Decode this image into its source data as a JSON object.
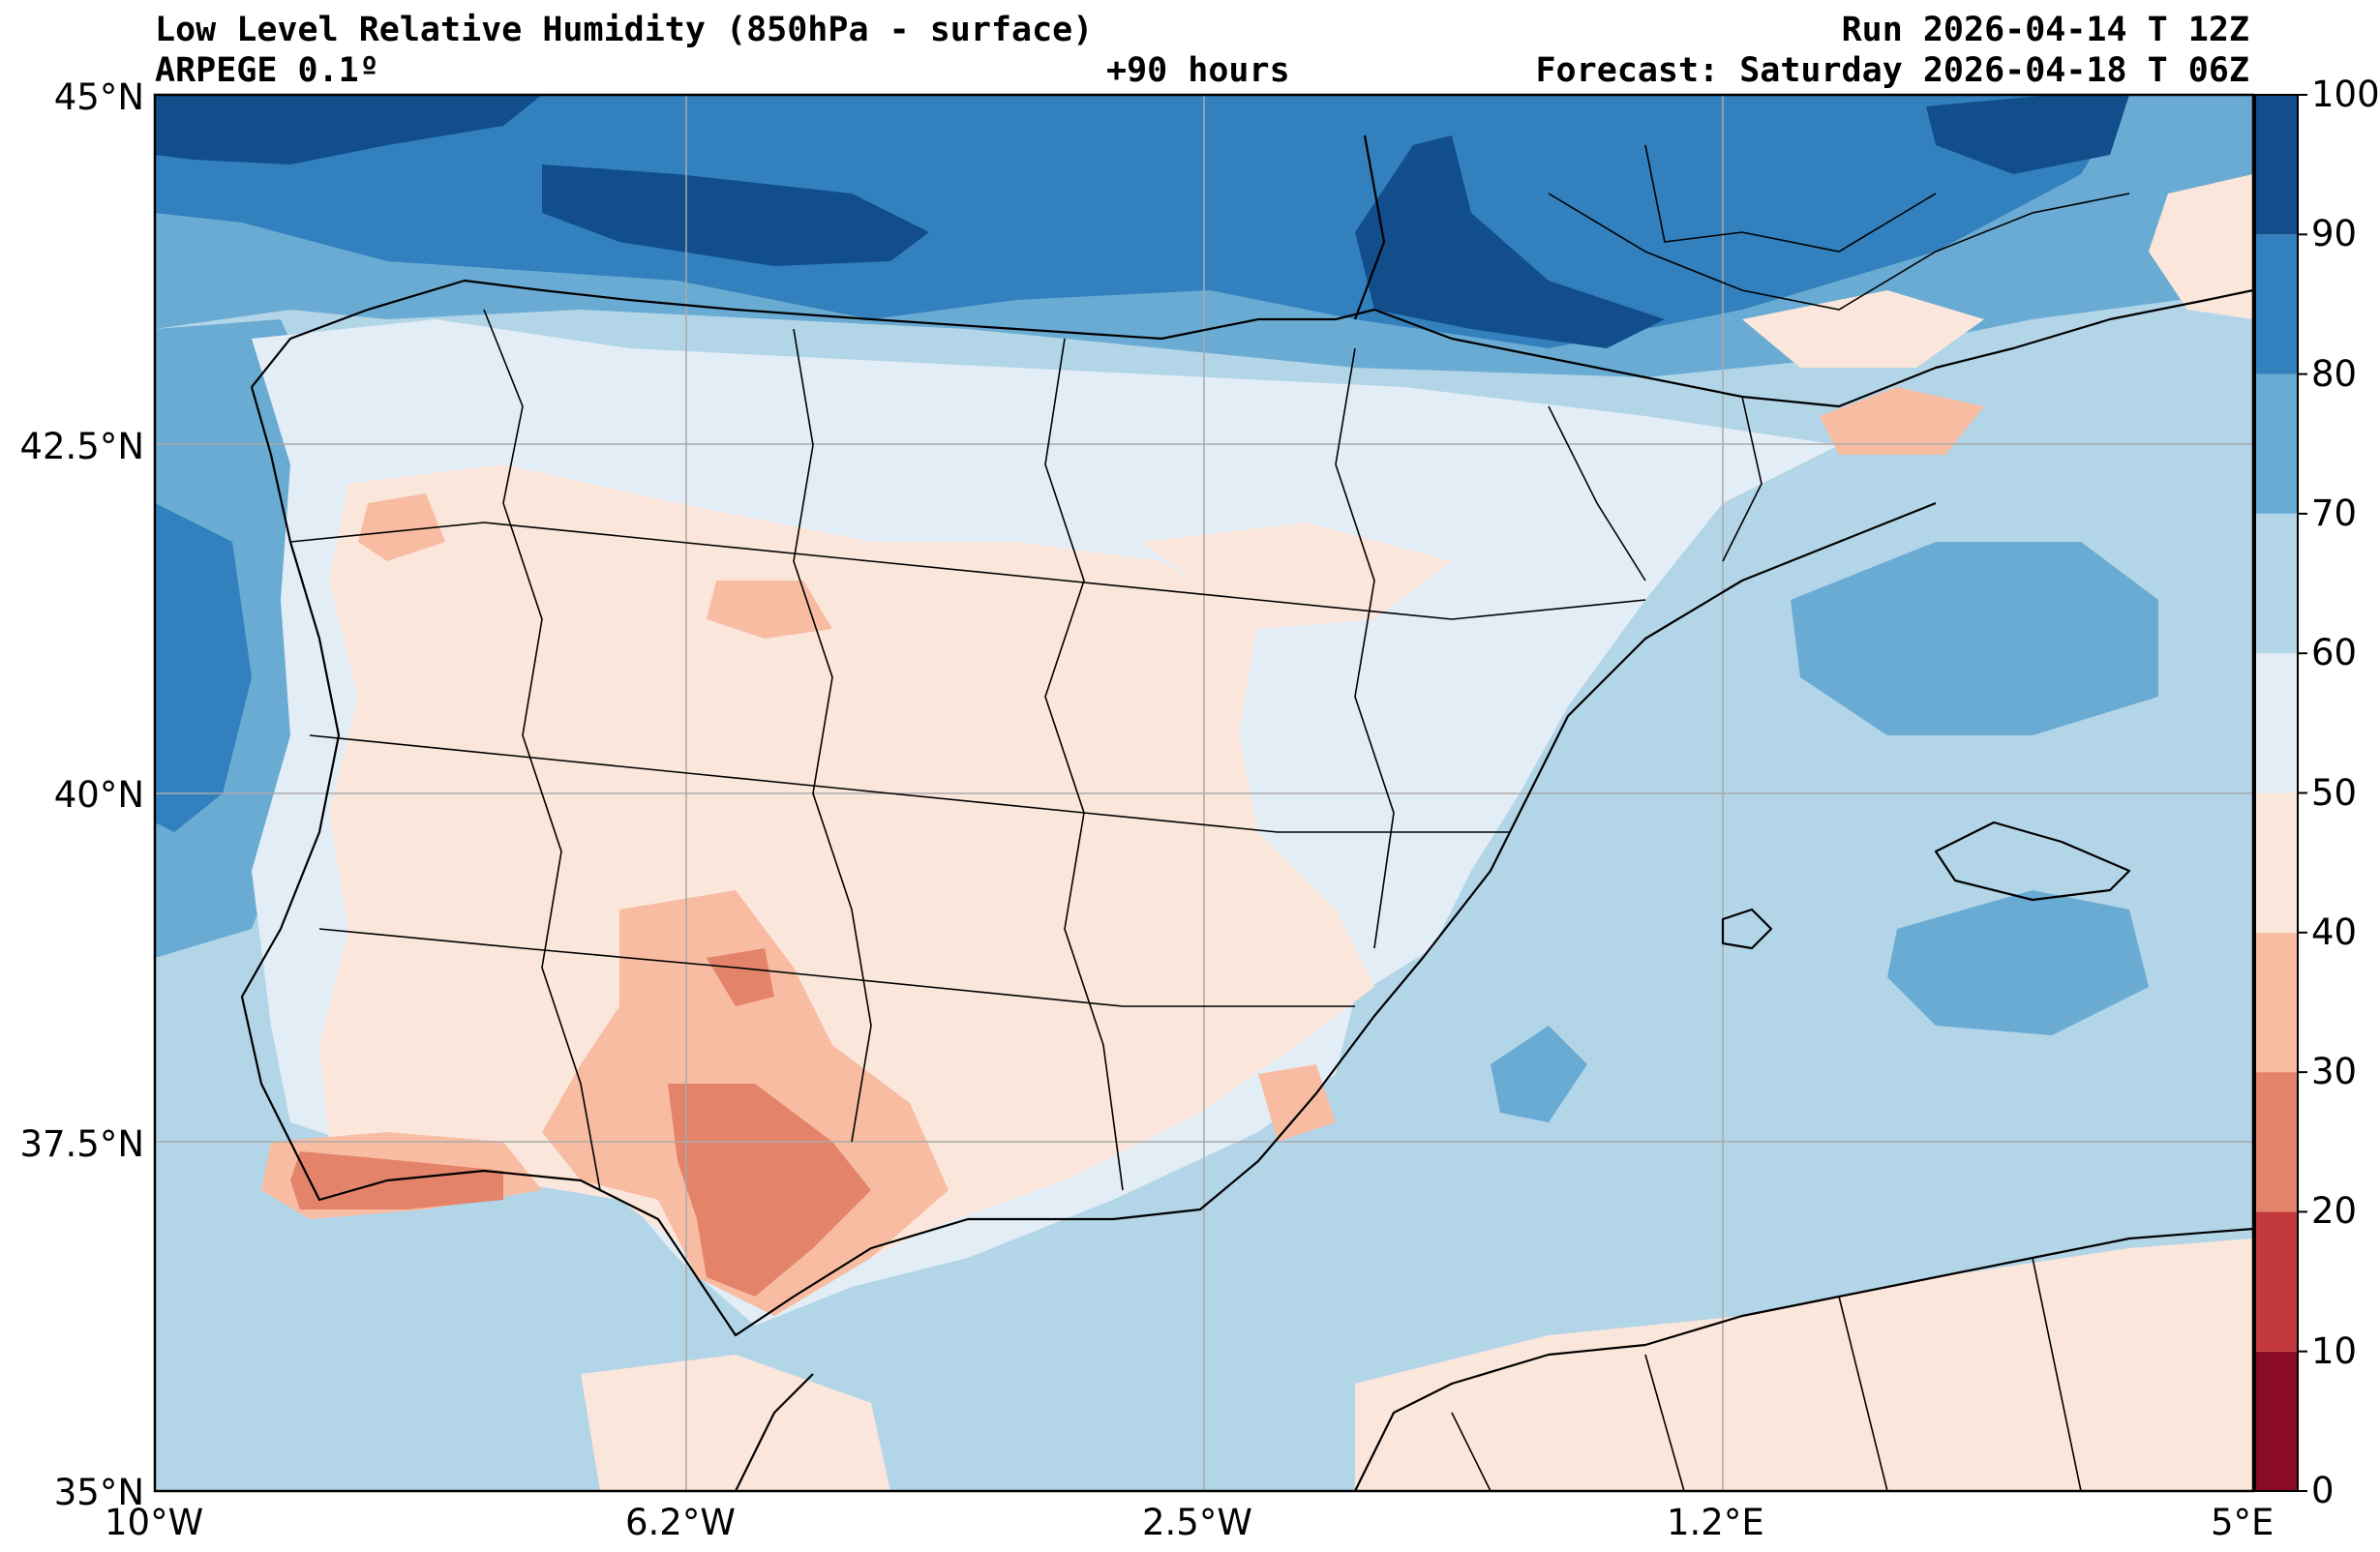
{
  "header": {
    "title": "Low Level Relative Humidity (850hPa - surface)",
    "model": "ARPEGE 0.1º",
    "lead_time": "+90 hours",
    "run": "Run 2026-04-14 T 12Z",
    "forecast": "Forecast: Saturday 2026-04-18 T 06Z"
  },
  "map": {
    "projection": "plate-carree",
    "lon_range": [
      -10,
      5
    ],
    "lat_range": [
      35,
      45
    ],
    "gridlines": true,
    "lon_ticks": [
      {
        "value": -10,
        "label": "10°W"
      },
      {
        "value": -6.2,
        "label": "6.2°W"
      },
      {
        "value": -2.5,
        "label": "2.5°W"
      },
      {
        "value": 1.2,
        "label": "1.2°E"
      },
      {
        "value": 5,
        "label": "5°E"
      }
    ],
    "lat_ticks": [
      {
        "value": 45,
        "label": "45°N"
      },
      {
        "value": 42.5,
        "label": "42.5°N"
      },
      {
        "value": 40,
        "label": "40°N"
      },
      {
        "value": 37.5,
        "label": "37.5°N"
      },
      {
        "value": 35,
        "label": "35°N"
      }
    ]
  },
  "colorbar": {
    "variable": "relative humidity",
    "range": [
      0,
      100
    ],
    "levels": [
      {
        "from": 0,
        "to": 10,
        "color": "#8b0a26"
      },
      {
        "from": 10,
        "to": 20,
        "color": "#c43a3c"
      },
      {
        "from": 20,
        "to": 30,
        "color": "#e3836a"
      },
      {
        "from": 30,
        "to": 40,
        "color": "#f8bca2"
      },
      {
        "from": 40,
        "to": 50,
        "color": "#fbe6db"
      },
      {
        "from": 50,
        "to": 60,
        "color": "#e3edf6"
      },
      {
        "from": 60,
        "to": 70,
        "color": "#b2d5e8"
      },
      {
        "from": 70,
        "to": 80,
        "color": "#6aabd3"
      },
      {
        "from": 80,
        "to": 90,
        "color": "#3280bd"
      },
      {
        "from": 90,
        "to": 100,
        "color": "#124d8c"
      }
    ],
    "tick_labels": [
      "0",
      "10",
      "20",
      "30",
      "40",
      "50",
      "60",
      "70",
      "80",
      "90",
      "100"
    ]
  }
}
